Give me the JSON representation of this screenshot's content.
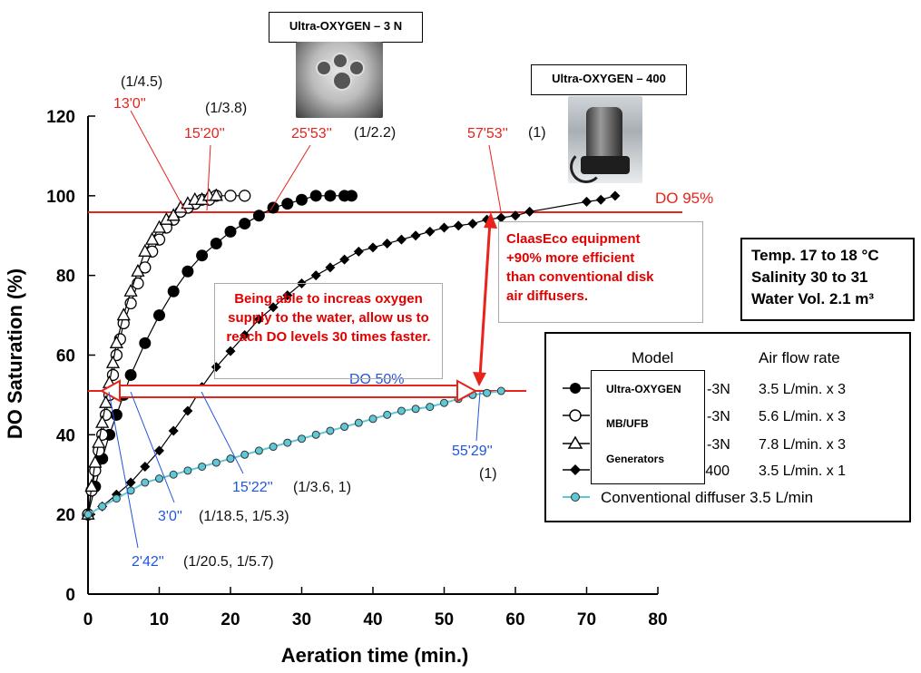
{
  "chart_data": {
    "type": "scatter",
    "xlabel": "Aeration time (min.)",
    "ylabel": "DO Saturation  (%)",
    "xlim": [
      0,
      80
    ],
    "ylim": [
      0,
      120
    ],
    "xticks": [
      "0",
      "10",
      "20",
      "30",
      "40",
      "50",
      "60",
      "70",
      "80"
    ],
    "yticks": [
      "0",
      "20",
      "40",
      "60",
      "80",
      "100",
      "120"
    ],
    "grid": false,
    "legend_position": "bottom-right",
    "series": [
      {
        "marker": "filled-circle",
        "x": [
          0,
          1,
          2,
          3,
          4,
          5,
          6,
          8,
          10,
          12,
          14,
          16,
          18,
          20,
          22,
          24,
          26,
          28,
          30,
          32,
          34,
          36,
          37
        ],
        "values": [
          20,
          27,
          34,
          40,
          45,
          50,
          55,
          63,
          70,
          76,
          81,
          85,
          88,
          91,
          93,
          95,
          97,
          98,
          99,
          100,
          100,
          100,
          100
        ]
      },
      {
        "marker": "open-circle",
        "x": [
          0,
          0.5,
          1,
          1.5,
          2,
          2.5,
          3,
          3.5,
          4,
          4.5,
          5,
          6,
          7,
          8,
          9,
          10,
          11,
          12,
          13,
          14,
          15,
          16,
          17,
          18,
          20,
          22
        ],
        "values": [
          20,
          26,
          31,
          36,
          40,
          45,
          50,
          55,
          60,
          64,
          68,
          73,
          78,
          82,
          86,
          89,
          92,
          94,
          96,
          97,
          98,
          99,
          99,
          100,
          100,
          100
        ]
      },
      {
        "marker": "open-triangle",
        "x": [
          0,
          0.5,
          1,
          1.5,
          2,
          2.5,
          3,
          3.5,
          4,
          5,
          6,
          7,
          8,
          9,
          10,
          11,
          12,
          13,
          14,
          15,
          16,
          17,
          18
        ],
        "values": [
          20,
          27,
          33,
          38,
          43,
          48,
          53,
          58,
          63,
          70,
          76,
          81,
          86,
          89,
          92,
          94,
          95,
          97,
          98,
          99,
          99,
          100,
          100
        ]
      },
      {
        "marker": "filled-diamond",
        "x": [
          0,
          2,
          4,
          6,
          8,
          10,
          12,
          14,
          16,
          18,
          20,
          22,
          24,
          26,
          28,
          30,
          32,
          34,
          36,
          38,
          40,
          42,
          44,
          46,
          48,
          50,
          52,
          54,
          56,
          58,
          60,
          62,
          70,
          72,
          74
        ],
        "values": [
          20,
          22,
          25,
          28,
          32,
          36,
          41,
          46,
          52,
          57,
          61,
          65,
          69,
          72,
          75,
          78,
          80,
          82,
          84,
          86,
          87,
          88,
          89,
          90,
          91,
          92,
          92.5,
          93,
          94,
          94.5,
          95,
          96,
          98.5,
          99,
          100
        ]
      },
      {
        "marker": "cyan-circle",
        "x": [
          0,
          2,
          4,
          6,
          8,
          10,
          12,
          14,
          16,
          18,
          20,
          22,
          24,
          26,
          28,
          30,
          32,
          34,
          36,
          38,
          40,
          42,
          44,
          46,
          48,
          50,
          52,
          54,
          56,
          58
        ],
        "values": [
          20,
          22,
          24,
          26,
          28,
          29,
          30,
          31,
          32,
          33,
          34,
          35,
          36,
          37,
          38,
          39,
          40,
          41,
          42,
          43,
          44,
          45,
          46,
          46.5,
          47,
          48,
          49,
          50,
          50.5,
          51
        ]
      }
    ],
    "reference_lines": [
      {
        "label": "DO 95%",
        "y": 95
      },
      {
        "label": "DO 50%",
        "y": 50
      }
    ],
    "annotations": {
      "t1": {
        "time": "13'0''",
        "ratio": "(1/4.5)"
      },
      "t2": {
        "time": "15'20''",
        "ratio": "(1/3.8)"
      },
      "t3": {
        "time": "25'53''",
        "ratio": "(1/2.2)"
      },
      "t4": {
        "time": "57'53''",
        "ratio": "(1)"
      },
      "t5": {
        "time": "15'22''",
        "ratio": "(1/3.6, 1)"
      },
      "t6": {
        "time": "3'0''",
        "ratio": "(1/18.5, 1/5.3)"
      },
      "t7": {
        "time": "2'42''",
        "ratio": "(1/20.5, 1/5.7)"
      },
      "t8": {
        "time": "55'29''",
        "ratio": "(1)"
      }
    },
    "legend": {
      "header_model": "Model",
      "header_rate": "Air flow rate",
      "rows": [
        {
          "model_tail": "-3N",
          "rate": "3.5 L/min. x 3"
        },
        {
          "model_tail": "-3N",
          "rate": "5.6 L/min. x 3"
        },
        {
          "model_tail": "-3N",
          "rate": "7.8 L/min. x 3"
        },
        {
          "model_tail": "-400",
          "rate": "3.5 L/min. x 1"
        }
      ],
      "conventional": "Conventional diffuser  3.5 L/min",
      "overlay": [
        "Ultra-OXYGEN",
        "MB/UFB",
        "Generators"
      ]
    },
    "colors": {
      "red": "#e8231c",
      "blue": "#2255dd",
      "cyan": "#5ec8d6",
      "black": "#000000"
    }
  },
  "labels": {
    "product_3n": "Ultra-OXYGEN – 3 N",
    "product_400": "Ultra-OXYGEN – 400",
    "claaseco": [
      "ClaasEco equipment",
      "+90% more efficient",
      "than conventional disk",
      "air diffusers."
    ],
    "conditions": [
      "Temp. 17 to 18 °C",
      "Salinity 30 to 31",
      "Water Vol. 2.1 m³"
    ],
    "increase": "Being able to increas oxygen supply to the water, allow us to reach DO levels 30 times faster."
  }
}
